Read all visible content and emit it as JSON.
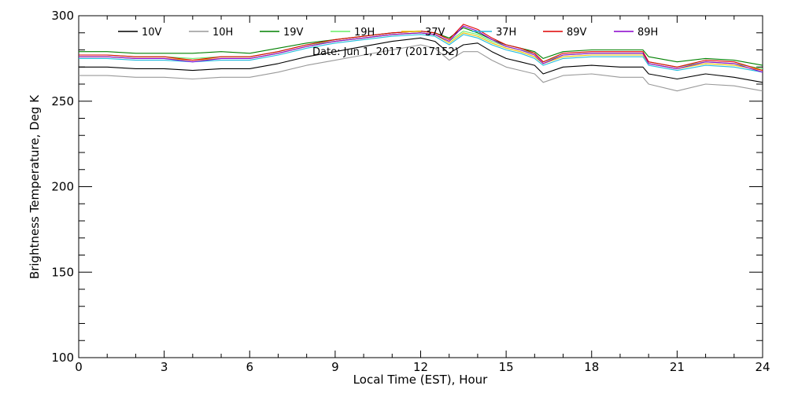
{
  "chart_data": {
    "type": "line",
    "title": "",
    "annotation": "Date: Jun  1, 2017 (2017152)",
    "xlabel": "Local Time (EST), Hour",
    "ylabel": "Brightness Temperature, Deg K",
    "xlim": [
      0,
      24
    ],
    "ylim": [
      100,
      300
    ],
    "x_ticks": [
      0,
      3,
      6,
      9,
      12,
      15,
      18,
      21,
      24
    ],
    "y_ticks": [
      100,
      150,
      200,
      250,
      300
    ],
    "grid": false,
    "legend_position": "top",
    "x": [
      0,
      1,
      2,
      3,
      4,
      5,
      6,
      7,
      8,
      9,
      10,
      11,
      12,
      12.5,
      13,
      13.5,
      14,
      14.5,
      15,
      15.5,
      16,
      16.3,
      17,
      18,
      19,
      19.8,
      20,
      21,
      22,
      23,
      24
    ],
    "series": [
      {
        "name": "10V",
        "color": "#000000",
        "values": [
          270,
          270,
          269,
          269,
          268,
          269,
          269,
          272,
          276,
          279,
          282,
          285,
          287,
          285,
          278,
          283,
          284,
          279,
          275,
          273,
          271,
          266,
          270,
          271,
          270,
          270,
          266,
          263,
          266,
          264,
          261
        ]
      },
      {
        "name": "10H",
        "color": "#999999",
        "values": [
          265,
          265,
          264,
          264,
          263,
          264,
          264,
          267,
          271,
          274,
          277,
          280,
          283,
          281,
          274,
          279,
          279,
          274,
          270,
          268,
          266,
          261,
          265,
          266,
          264,
          264,
          260,
          256,
          260,
          259,
          256
        ]
      },
      {
        "name": "19V",
        "color": "#008000",
        "values": [
          279,
          279,
          278,
          278,
          278,
          279,
          278,
          281,
          284,
          286,
          288,
          290,
          291,
          290,
          287,
          293,
          290,
          286,
          283,
          281,
          279,
          275,
          279,
          280,
          280,
          280,
          276,
          273,
          275,
          274,
          271
        ]
      },
      {
        "name": "19H",
        "color": "#66ee66",
        "values": [
          277,
          277,
          276,
          276,
          275,
          276,
          276,
          279,
          283,
          285,
          287,
          289,
          290,
          289,
          285,
          291,
          289,
          285,
          282,
          280,
          278,
          273,
          277,
          278,
          278,
          278,
          273,
          270,
          273,
          272,
          269
        ]
      },
      {
        "name": "37V",
        "color": "#e8c200",
        "values": [
          276,
          276,
          275,
          275,
          274,
          275,
          275,
          278,
          282,
          285,
          287,
          289,
          290,
          289,
          284,
          290,
          288,
          284,
          281,
          279,
          276,
          272,
          276,
          277,
          277,
          277,
          272,
          269,
          272,
          271,
          268
        ]
      },
      {
        "name": "37H",
        "color": "#22bbdd",
        "values": [
          275,
          275,
          274,
          274,
          273,
          274,
          274,
          277,
          281,
          284,
          286,
          288,
          289,
          288,
          283,
          289,
          287,
          283,
          280,
          278,
          275,
          271,
          275,
          276,
          276,
          276,
          271,
          268,
          271,
          270,
          267
        ]
      },
      {
        "name": "89V",
        "color": "#dd0000",
        "values": [
          277,
          277,
          276,
          276,
          274,
          276,
          276,
          279,
          283,
          286,
          288,
          290,
          291,
          290,
          286,
          295,
          292,
          287,
          283,
          281,
          278,
          273,
          278,
          279,
          279,
          279,
          273,
          270,
          274,
          273,
          268
        ]
      },
      {
        "name": "89H",
        "color": "#8800cc",
        "values": [
          276,
          276,
          275,
          275,
          273,
          275,
          275,
          278,
          282,
          285,
          287,
          289,
          290,
          289,
          285,
          294,
          291,
          286,
          282,
          280,
          277,
          272,
          277,
          278,
          278,
          278,
          272,
          269,
          273,
          272,
          267
        ]
      }
    ]
  }
}
